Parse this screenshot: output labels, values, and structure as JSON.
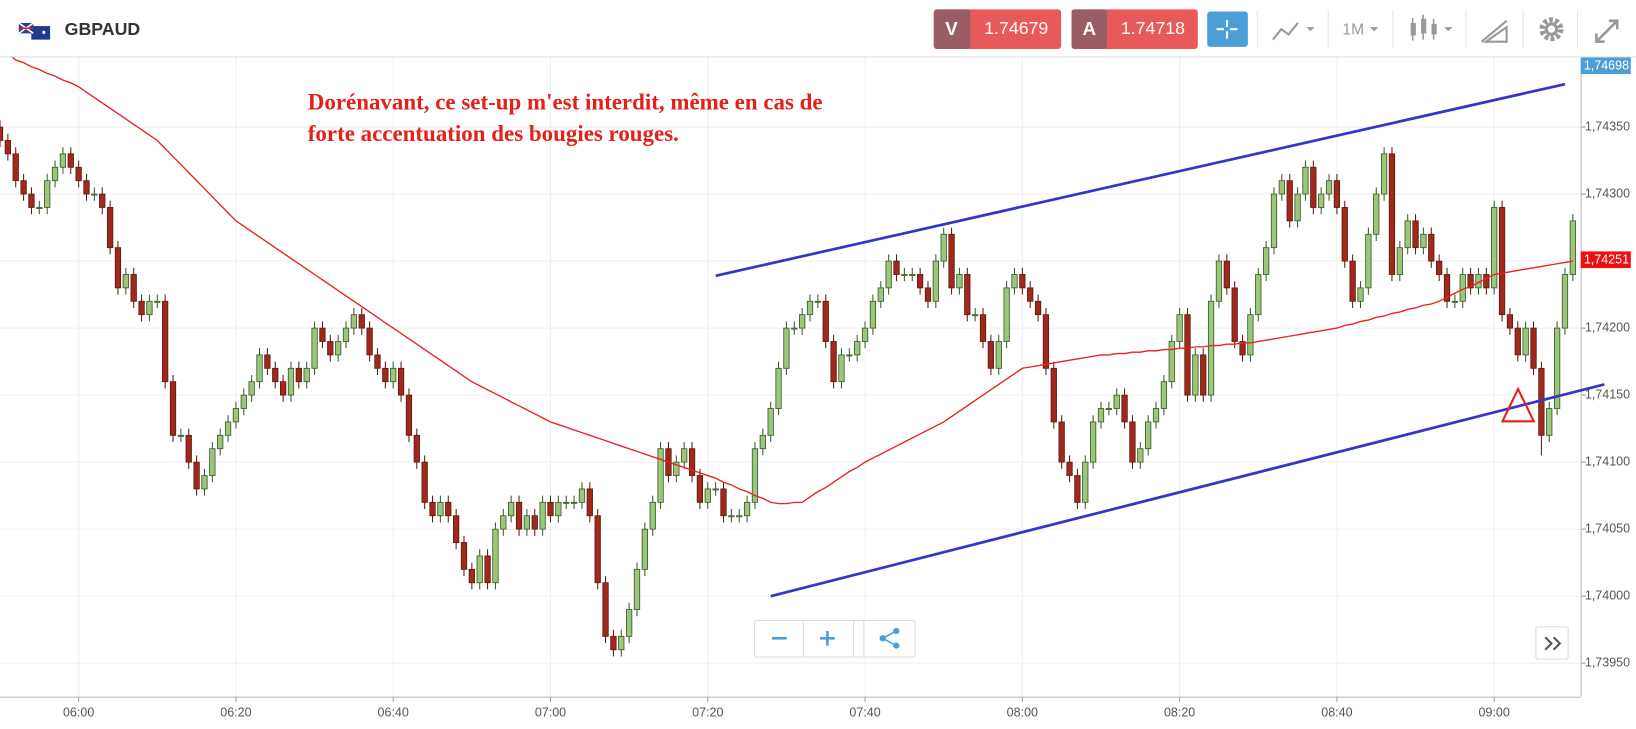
{
  "header": {
    "symbol": "GBPAUD",
    "sell_label": "V",
    "sell_price": 1.74679,
    "buy_label": "A",
    "buy_price": 1.74718,
    "timeframe": "1M"
  },
  "chart_data": {
    "type": "candlestick",
    "annotation": [
      "Dorénavant, ce set-up m'est interdit, même en cas de",
      "forte accentuation des bougies rouges."
    ],
    "categories": [
      null,
      null,
      null,
      null,
      null,
      null,
      null,
      null,
      null,
      null,
      "06:00",
      null,
      null,
      null,
      null,
      null,
      null,
      null,
      null,
      null,
      null,
      null,
      null,
      null,
      null,
      null,
      null,
      null,
      null,
      null,
      "06:20",
      null,
      null,
      null,
      null,
      null,
      null,
      null,
      null,
      null,
      null,
      null,
      null,
      null,
      null,
      null,
      null,
      null,
      null,
      null,
      "06:40",
      null,
      null,
      null,
      null,
      null,
      null,
      null,
      null,
      null,
      null,
      null,
      null,
      null,
      null,
      null,
      null,
      null,
      null,
      null,
      "07:00",
      null,
      null,
      null,
      null,
      null,
      null,
      null,
      null,
      null,
      null,
      null,
      null,
      null,
      null,
      null,
      null,
      null,
      null,
      null,
      "07:20",
      null,
      null,
      null,
      null,
      null,
      null,
      null,
      null,
      null,
      null,
      null,
      null,
      null,
      null,
      null,
      null,
      null,
      null,
      null,
      "07:40",
      null,
      null,
      null,
      null,
      null,
      null,
      null,
      null,
      null,
      null,
      null,
      null,
      null,
      null,
      null,
      null,
      null,
      null,
      null,
      "08:00",
      null,
      null,
      null,
      null,
      null,
      null,
      null,
      null,
      null,
      null,
      null,
      null,
      null,
      null,
      null,
      null,
      null,
      null,
      null,
      "08:20",
      null,
      null,
      null,
      null,
      null,
      null,
      null,
      null,
      null,
      null,
      null,
      null,
      null,
      null,
      null,
      null,
      null,
      null,
      null,
      "08:40",
      null,
      null,
      null,
      null,
      null,
      null,
      null,
      null,
      null,
      null,
      null,
      null,
      null,
      null,
      null,
      null,
      null,
      null,
      null,
      "09:00",
      null,
      null,
      null,
      null,
      null,
      null,
      null,
      null,
      null,
      null
    ],
    "open": [
      1.7435,
      1.7434,
      1.7433,
      1.7431,
      1.743,
      1.7429,
      1.7429,
      1.7431,
      1.7432,
      1.7433,
      1.7432,
      1.7431,
      1.743,
      1.743,
      1.7429,
      1.7426,
      1.7423,
      1.7424,
      1.7422,
      1.7421,
      1.7422,
      1.7422,
      1.7416,
      1.7412,
      1.7412,
      1.741,
      1.7408,
      1.7409,
      1.7411,
      1.7412,
      1.7413,
      1.7414,
      1.7415,
      1.7416,
      1.7418,
      1.7417,
      1.7416,
      1.7415,
      1.7417,
      1.7416,
      1.7417,
      1.742,
      1.7419,
      1.7418,
      1.7419,
      1.742,
      1.7421,
      1.742,
      1.7418,
      1.7417,
      1.7416,
      1.7417,
      1.7415,
      1.7412,
      1.741,
      1.7407,
      1.7406,
      1.7407,
      1.7406,
      1.7404,
      1.7402,
      1.7401,
      1.7403,
      1.7401,
      1.7405,
      1.7406,
      1.7407,
      1.7405,
      1.7406,
      1.7405,
      1.7407,
      1.7406,
      1.7407,
      1.7407,
      1.7407,
      1.7408,
      1.7406,
      1.7401,
      1.7397,
      1.7396,
      1.7397,
      1.7399,
      1.7402,
      1.7405,
      1.7407,
      1.7411,
      1.7409,
      1.741,
      1.7411,
      1.7409,
      1.7407,
      1.7408,
      1.7408,
      1.7406,
      1.7406,
      1.7406,
      1.7407,
      1.7411,
      1.7412,
      1.7414,
      1.7417,
      1.742,
      1.742,
      1.7421,
      1.7422,
      1.7422,
      1.7419,
      1.7416,
      1.7418,
      1.7418,
      1.7419,
      1.742,
      1.7422,
      1.7423,
      1.7425,
      1.7424,
      1.7424,
      1.7424,
      1.7423,
      1.7422,
      1.7425,
      1.7427,
      1.7423,
      1.7424,
      1.7421,
      1.7421,
      1.7419,
      1.7417,
      1.7419,
      1.7423,
      1.7424,
      1.7423,
      1.7422,
      1.7421,
      1.7417,
      1.7413,
      1.741,
      1.7409,
      1.7407,
      1.741,
      1.7413,
      1.7414,
      1.7414,
      1.7415,
      1.7413,
      1.741,
      1.7411,
      1.7413,
      1.7414,
      1.7416,
      1.7419,
      1.7421,
      1.7415,
      1.7418,
      1.7415,
      1.7422,
      1.7425,
      1.7423,
      1.7419,
      1.7418,
      1.7421,
      1.7424,
      1.7426,
      1.743,
      1.7431,
      1.7428,
      1.743,
      1.7432,
      1.7429,
      1.743,
      1.7431,
      1.7429,
      1.7425,
      1.7422,
      1.7423,
      1.7427,
      1.743,
      1.7433,
      1.7424,
      1.7426,
      1.7428,
      1.7426,
      1.7427,
      1.7425,
      1.7424,
      1.7422,
      1.7422,
      1.7424,
      1.7423,
      1.7424,
      1.7423,
      1.7429,
      1.7421,
      1.742,
      1.7418,
      1.742,
      1.7417,
      1.7412,
      1.7414,
      1.742,
      1.7424
    ],
    "high": [
      1.74355,
      1.74345,
      1.74335,
      1.74315,
      1.74305,
      1.74295,
      1.74315,
      1.74325,
      1.74335,
      1.74335,
      1.74325,
      1.74315,
      1.74305,
      1.74305,
      1.74295,
      1.74265,
      1.74245,
      1.74245,
      1.74225,
      1.74225,
      1.74225,
      1.74225,
      1.74165,
      1.74125,
      1.74125,
      1.74105,
      1.74095,
      1.74115,
      1.74125,
      1.74135,
      1.74145,
      1.74155,
      1.74165,
      1.74185,
      1.74185,
      1.74175,
      1.74165,
      1.74175,
      1.74175,
      1.74175,
      1.74205,
      1.74205,
      1.74195,
      1.74195,
      1.74205,
      1.74215,
      1.74215,
      1.74205,
      1.74185,
      1.74175,
      1.74175,
      1.74175,
      1.74155,
      1.74125,
      1.74105,
      1.74075,
      1.74075,
      1.74075,
      1.74065,
      1.74045,
      1.74025,
      1.74035,
      1.74035,
      1.74055,
      1.74065,
      1.74075,
      1.74075,
      1.74065,
      1.74065,
      1.74075,
      1.74075,
      1.74075,
      1.74075,
      1.74075,
      1.74085,
      1.74085,
      1.74065,
      1.74015,
      1.73975,
      1.73975,
      1.73995,
      1.74025,
      1.74055,
      1.74075,
      1.74115,
      1.74115,
      1.74105,
      1.74115,
      1.74115,
      1.74095,
      1.74085,
      1.74085,
      1.74085,
      1.74065,
      1.74065,
      1.74075,
      1.74115,
      1.74125,
      1.74145,
      1.74175,
      1.74205,
      1.74205,
      1.74215,
      1.74225,
      1.74225,
      1.74225,
      1.74195,
      1.74185,
      1.74185,
      1.74195,
      1.74205,
      1.74225,
      1.74235,
      1.74255,
      1.74255,
      1.74245,
      1.74245,
      1.74245,
      1.74235,
      1.74255,
      1.74275,
      1.74275,
      1.74245,
      1.74245,
      1.74215,
      1.74215,
      1.74195,
      1.74195,
      1.74235,
      1.74245,
      1.74245,
      1.74235,
      1.74225,
      1.74215,
      1.74175,
      1.74135,
      1.74105,
      1.74095,
      1.74105,
      1.74135,
      1.74145,
      1.74145,
      1.74155,
      1.74155,
      1.74135,
      1.74115,
      1.74135,
      1.74145,
      1.74165,
      1.74195,
      1.74215,
      1.74215,
      1.74185,
      1.74185,
      1.74225,
      1.74255,
      1.74255,
      1.74235,
      1.74195,
      1.74215,
      1.74245,
      1.74265,
      1.74305,
      1.74315,
      1.74315,
      1.74305,
      1.74325,
      1.74325,
      1.74305,
      1.74315,
      1.74315,
      1.74295,
      1.74255,
      1.74235,
      1.74275,
      1.74305,
      1.74335,
      1.74335,
      1.74265,
      1.74285,
      1.74285,
      1.74275,
      1.74275,
      1.74255,
      1.74245,
      1.74225,
      1.74245,
      1.74245,
      1.74245,
      1.74245,
      1.74295,
      1.74295,
      1.74215,
      1.74205,
      1.74205,
      1.74205,
      1.74175,
      1.74145,
      1.74205,
      1.74245,
      1.74285
    ],
    "low": [
      1.74335,
      1.74325,
      1.74305,
      1.74295,
      1.74285,
      1.74285,
      1.74285,
      1.74305,
      1.74315,
      1.74315,
      1.74305,
      1.74295,
      1.74295,
      1.74285,
      1.74255,
      1.74225,
      1.74225,
      1.74215,
      1.74205,
      1.74205,
      1.74215,
      1.74155,
      1.74115,
      1.74115,
      1.74095,
      1.74075,
      1.74075,
      1.74085,
      1.74105,
      1.74115,
      1.74125,
      1.74135,
      1.74145,
      1.74155,
      1.74165,
      1.74155,
      1.74145,
      1.74145,
      1.74155,
      1.74155,
      1.74165,
      1.74185,
      1.74175,
      1.74175,
      1.74185,
      1.74195,
      1.74195,
      1.74175,
      1.74165,
      1.74155,
      1.74155,
      1.74145,
      1.74115,
      1.74095,
      1.74065,
      1.74055,
      1.74055,
      1.74055,
      1.74035,
      1.74015,
      1.74005,
      1.74005,
      1.74005,
      1.74005,
      1.74045,
      1.74055,
      1.74045,
      1.74045,
      1.74045,
      1.74045,
      1.74055,
      1.74055,
      1.74065,
      1.74065,
      1.74065,
      1.74055,
      1.74005,
      1.73965,
      1.73955,
      1.73955,
      1.73965,
      1.73985,
      1.74015,
      1.74045,
      1.74065,
      1.74085,
      1.74085,
      1.74095,
      1.74085,
      1.74065,
      1.74065,
      1.74075,
      1.74055,
      1.74055,
      1.74055,
      1.74055,
      1.74065,
      1.74105,
      1.74115,
      1.74135,
      1.74165,
      1.74195,
      1.74195,
      1.74205,
      1.74215,
      1.74185,
      1.74155,
      1.74155,
      1.74175,
      1.74175,
      1.74185,
      1.74195,
      1.74215,
      1.74225,
      1.74235,
      1.74235,
      1.74235,
      1.74225,
      1.74215,
      1.74215,
      1.74245,
      1.74225,
      1.74225,
      1.74205,
      1.74205,
      1.74185,
      1.74165,
      1.74165,
      1.74185,
      1.74225,
      1.74225,
      1.74215,
      1.74205,
      1.74165,
      1.74125,
      1.74095,
      1.74085,
      1.74065,
      1.74065,
      1.74095,
      1.74125,
      1.74135,
      1.74135,
      1.74125,
      1.74095,
      1.74095,
      1.74105,
      1.74125,
      1.74135,
      1.74155,
      1.74185,
      1.74145,
      1.74145,
      1.74145,
      1.74145,
      1.74215,
      1.74225,
      1.74185,
      1.74175,
      1.74175,
      1.74205,
      1.74235,
      1.74255,
      1.74295,
      1.74275,
      1.74275,
      1.74295,
      1.74285,
      1.74285,
      1.74295,
      1.74285,
      1.74245,
      1.74215,
      1.74215,
      1.74225,
      1.74265,
      1.74295,
      1.74235,
      1.74235,
      1.74255,
      1.74255,
      1.74255,
      1.74245,
      1.74235,
      1.74215,
      1.74215,
      1.74215,
      1.74225,
      1.74225,
      1.74225,
      1.74225,
      1.74205,
      1.74195,
      1.74175,
      1.74175,
      1.74165,
      1.74105,
      1.74115,
      1.74135,
      1.74195,
      1.74235
    ],
    "close": [
      1.7434,
      1.7433,
      1.7431,
      1.743,
      1.7429,
      1.7429,
      1.7431,
      1.7432,
      1.7433,
      1.7432,
      1.7431,
      1.743,
      1.743,
      1.7429,
      1.7426,
      1.7423,
      1.7424,
      1.7422,
      1.7421,
      1.7422,
      1.7422,
      1.7416,
      1.7412,
      1.7412,
      1.741,
      1.7408,
      1.7409,
      1.7411,
      1.7412,
      1.7413,
      1.7414,
      1.7415,
      1.7416,
      1.7418,
      1.7417,
      1.7416,
      1.7415,
      1.7417,
      1.7416,
      1.7417,
      1.742,
      1.7419,
      1.7418,
      1.7419,
      1.742,
      1.7421,
      1.742,
      1.7418,
      1.7417,
      1.7416,
      1.7417,
      1.7415,
      1.7412,
      1.741,
      1.7407,
      1.7406,
      1.7407,
      1.7406,
      1.7404,
      1.7402,
      1.7401,
      1.7403,
      1.7401,
      1.7405,
      1.7406,
      1.7407,
      1.7405,
      1.7406,
      1.7405,
      1.7407,
      1.7406,
      1.7407,
      1.7407,
      1.7407,
      1.7408,
      1.7406,
      1.7401,
      1.7397,
      1.7396,
      1.7397,
      1.7399,
      1.7402,
      1.7405,
      1.7407,
      1.7411,
      1.7409,
      1.741,
      1.7411,
      1.7409,
      1.7407,
      1.7408,
      1.7408,
      1.7406,
      1.7406,
      1.7406,
      1.7407,
      1.7411,
      1.7412,
      1.7414,
      1.7417,
      1.742,
      1.742,
      1.7421,
      1.7422,
      1.7422,
      1.7419,
      1.7416,
      1.7418,
      1.7418,
      1.7419,
      1.742,
      1.7422,
      1.7423,
      1.7425,
      1.7424,
      1.7424,
      1.7424,
      1.7423,
      1.7422,
      1.7425,
      1.7427,
      1.7423,
      1.7424,
      1.7421,
      1.7421,
      1.7419,
      1.7417,
      1.7419,
      1.7423,
      1.7424,
      1.7423,
      1.7422,
      1.7421,
      1.7417,
      1.7413,
      1.741,
      1.7409,
      1.7407,
      1.741,
      1.7413,
      1.7414,
      1.7414,
      1.7415,
      1.7413,
      1.741,
      1.7411,
      1.7413,
      1.7414,
      1.7416,
      1.7419,
      1.7421,
      1.7415,
      1.7418,
      1.7415,
      1.7422,
      1.7425,
      1.7423,
      1.7419,
      1.7418,
      1.7421,
      1.7424,
      1.7426,
      1.743,
      1.7431,
      1.7428,
      1.743,
      1.7432,
      1.7429,
      1.743,
      1.7431,
      1.7429,
      1.7425,
      1.7422,
      1.7423,
      1.7427,
      1.743,
      1.7433,
      1.7424,
      1.7426,
      1.7428,
      1.7426,
      1.7427,
      1.7425,
      1.7424,
      1.7422,
      1.7422,
      1.7424,
      1.7423,
      1.7424,
      1.7423,
      1.7429,
      1.7421,
      1.742,
      1.7418,
      1.742,
      1.7417,
      1.7412,
      1.7414,
      1.742,
      1.7424,
      1.7428
    ],
    "up_color": "#9cc67a",
    "down_color": "#a3281c",
    "moving_average": {
      "color": "#e8231f",
      "values": [
        1.7441,
        1.74405,
        1.744,
        1.74398,
        1.74395,
        1.74393,
        1.7439,
        1.74388,
        1.74385,
        1.74383,
        1.7438,
        1.74376,
        1.74372,
        1.74368,
        1.74364,
        1.7436,
        1.74356,
        1.74352,
        1.74348,
        1.74344,
        1.7434,
        1.74334,
        1.74328,
        1.74322,
        1.74316,
        1.7431,
        1.74304,
        1.74298,
        1.74292,
        1.74286,
        1.7428,
        1.74276,
        1.74272,
        1.74268,
        1.74264,
        1.7426,
        1.74256,
        1.74252,
        1.74248,
        1.74244,
        1.7424,
        1.74236,
        1.74232,
        1.74228,
        1.74224,
        1.7422,
        1.74216,
        1.74212,
        1.74208,
        1.74204,
        1.742,
        1.74196,
        1.74192,
        1.74188,
        1.74184,
        1.7418,
        1.74176,
        1.74172,
        1.74168,
        1.74164,
        1.7416,
        1.74157,
        1.74154,
        1.74151,
        1.74148,
        1.74145,
        1.74142,
        1.74139,
        1.74136,
        1.74133,
        1.7413,
        1.74128,
        1.74126,
        1.74124,
        1.74122,
        1.7412,
        1.74118,
        1.74116,
        1.74114,
        1.74112,
        1.7411,
        1.74108,
        1.74106,
        1.74104,
        1.74102,
        1.741,
        1.74098,
        1.74096,
        1.74094,
        1.74092,
        1.7409,
        1.74088,
        1.74085,
        1.74083,
        1.7408,
        1.74078,
        1.74075,
        1.74073,
        1.7407,
        1.74069,
        1.74069,
        1.7407,
        1.7407,
        1.74074,
        1.74078,
        1.74081,
        1.74085,
        1.74089,
        1.74093,
        1.74096,
        1.741,
        1.74103,
        1.74106,
        1.74109,
        1.74112,
        1.74115,
        1.74118,
        1.74121,
        1.74124,
        1.74127,
        1.7413,
        1.74134,
        1.74138,
        1.74142,
        1.74146,
        1.7415,
        1.74154,
        1.74158,
        1.74162,
        1.74166,
        1.7417,
        1.74171,
        1.74172,
        1.74173,
        1.74174,
        1.74175,
        1.74176,
        1.74177,
        1.74178,
        1.74179,
        1.7418,
        1.7418,
        1.74181,
        1.74181,
        1.74182,
        1.74182,
        1.74183,
        1.74183,
        1.74184,
        1.74184,
        1.74185,
        1.74185,
        1.74186,
        1.74186,
        1.74187,
        1.74187,
        1.74188,
        1.74188,
        1.74189,
        1.74189,
        1.7419,
        1.74191,
        1.74192,
        1.74193,
        1.74194,
        1.74195,
        1.74196,
        1.74197,
        1.74198,
        1.74199,
        1.742,
        1.74202,
        1.74203,
        1.74205,
        1.74206,
        1.74208,
        1.74209,
        1.74211,
        1.74212,
        1.74214,
        1.74215,
        1.74217,
        1.74218,
        1.7422,
        1.74223,
        1.74226,
        1.74229,
        1.74231,
        1.74234,
        1.74237,
        1.7424,
        1.74241,
        1.74242,
        1.74243,
        1.74244,
        1.74245,
        1.74246,
        1.74247,
        1.74248,
        1.74249,
        1.7425
      ]
    },
    "trend_lines": [
      {
        "color": "#3535c8",
        "x": [
          "07:21",
          "09:09"
        ],
        "y": [
          1.74239,
          1.74382
        ]
      },
      {
        "color": "#3535c8",
        "x": [
          "07:28",
          "09:14"
        ],
        "y": [
          1.74,
          1.74158
        ]
      }
    ],
    "ylim": [
      1.73925,
      1.74402
    ],
    "yticks": [
      {
        "value": 1.7435,
        "label": "1,74350"
      },
      {
        "value": 1.743,
        "label": "1,74300"
      },
      {
        "value": 1.7425,
        "label": "1,74250"
      },
      {
        "value": 1.742,
        "label": "1,74200"
      },
      {
        "value": 1.7415,
        "label": "1,74150"
      },
      {
        "value": 1.741,
        "label": "1,74100"
      },
      {
        "value": 1.7405,
        "label": "1,74050"
      },
      {
        "value": 1.74,
        "label": "1,74000"
      },
      {
        "value": 1.7395,
        "label": "1,73950"
      }
    ],
    "price_tags": [
      {
        "value": 1.74698,
        "label": "1,74698",
        "color": "#4a9fd8"
      },
      {
        "value": 1.74251,
        "label": "1,74251",
        "color": "#ee1010"
      }
    ],
    "grid": true
  }
}
